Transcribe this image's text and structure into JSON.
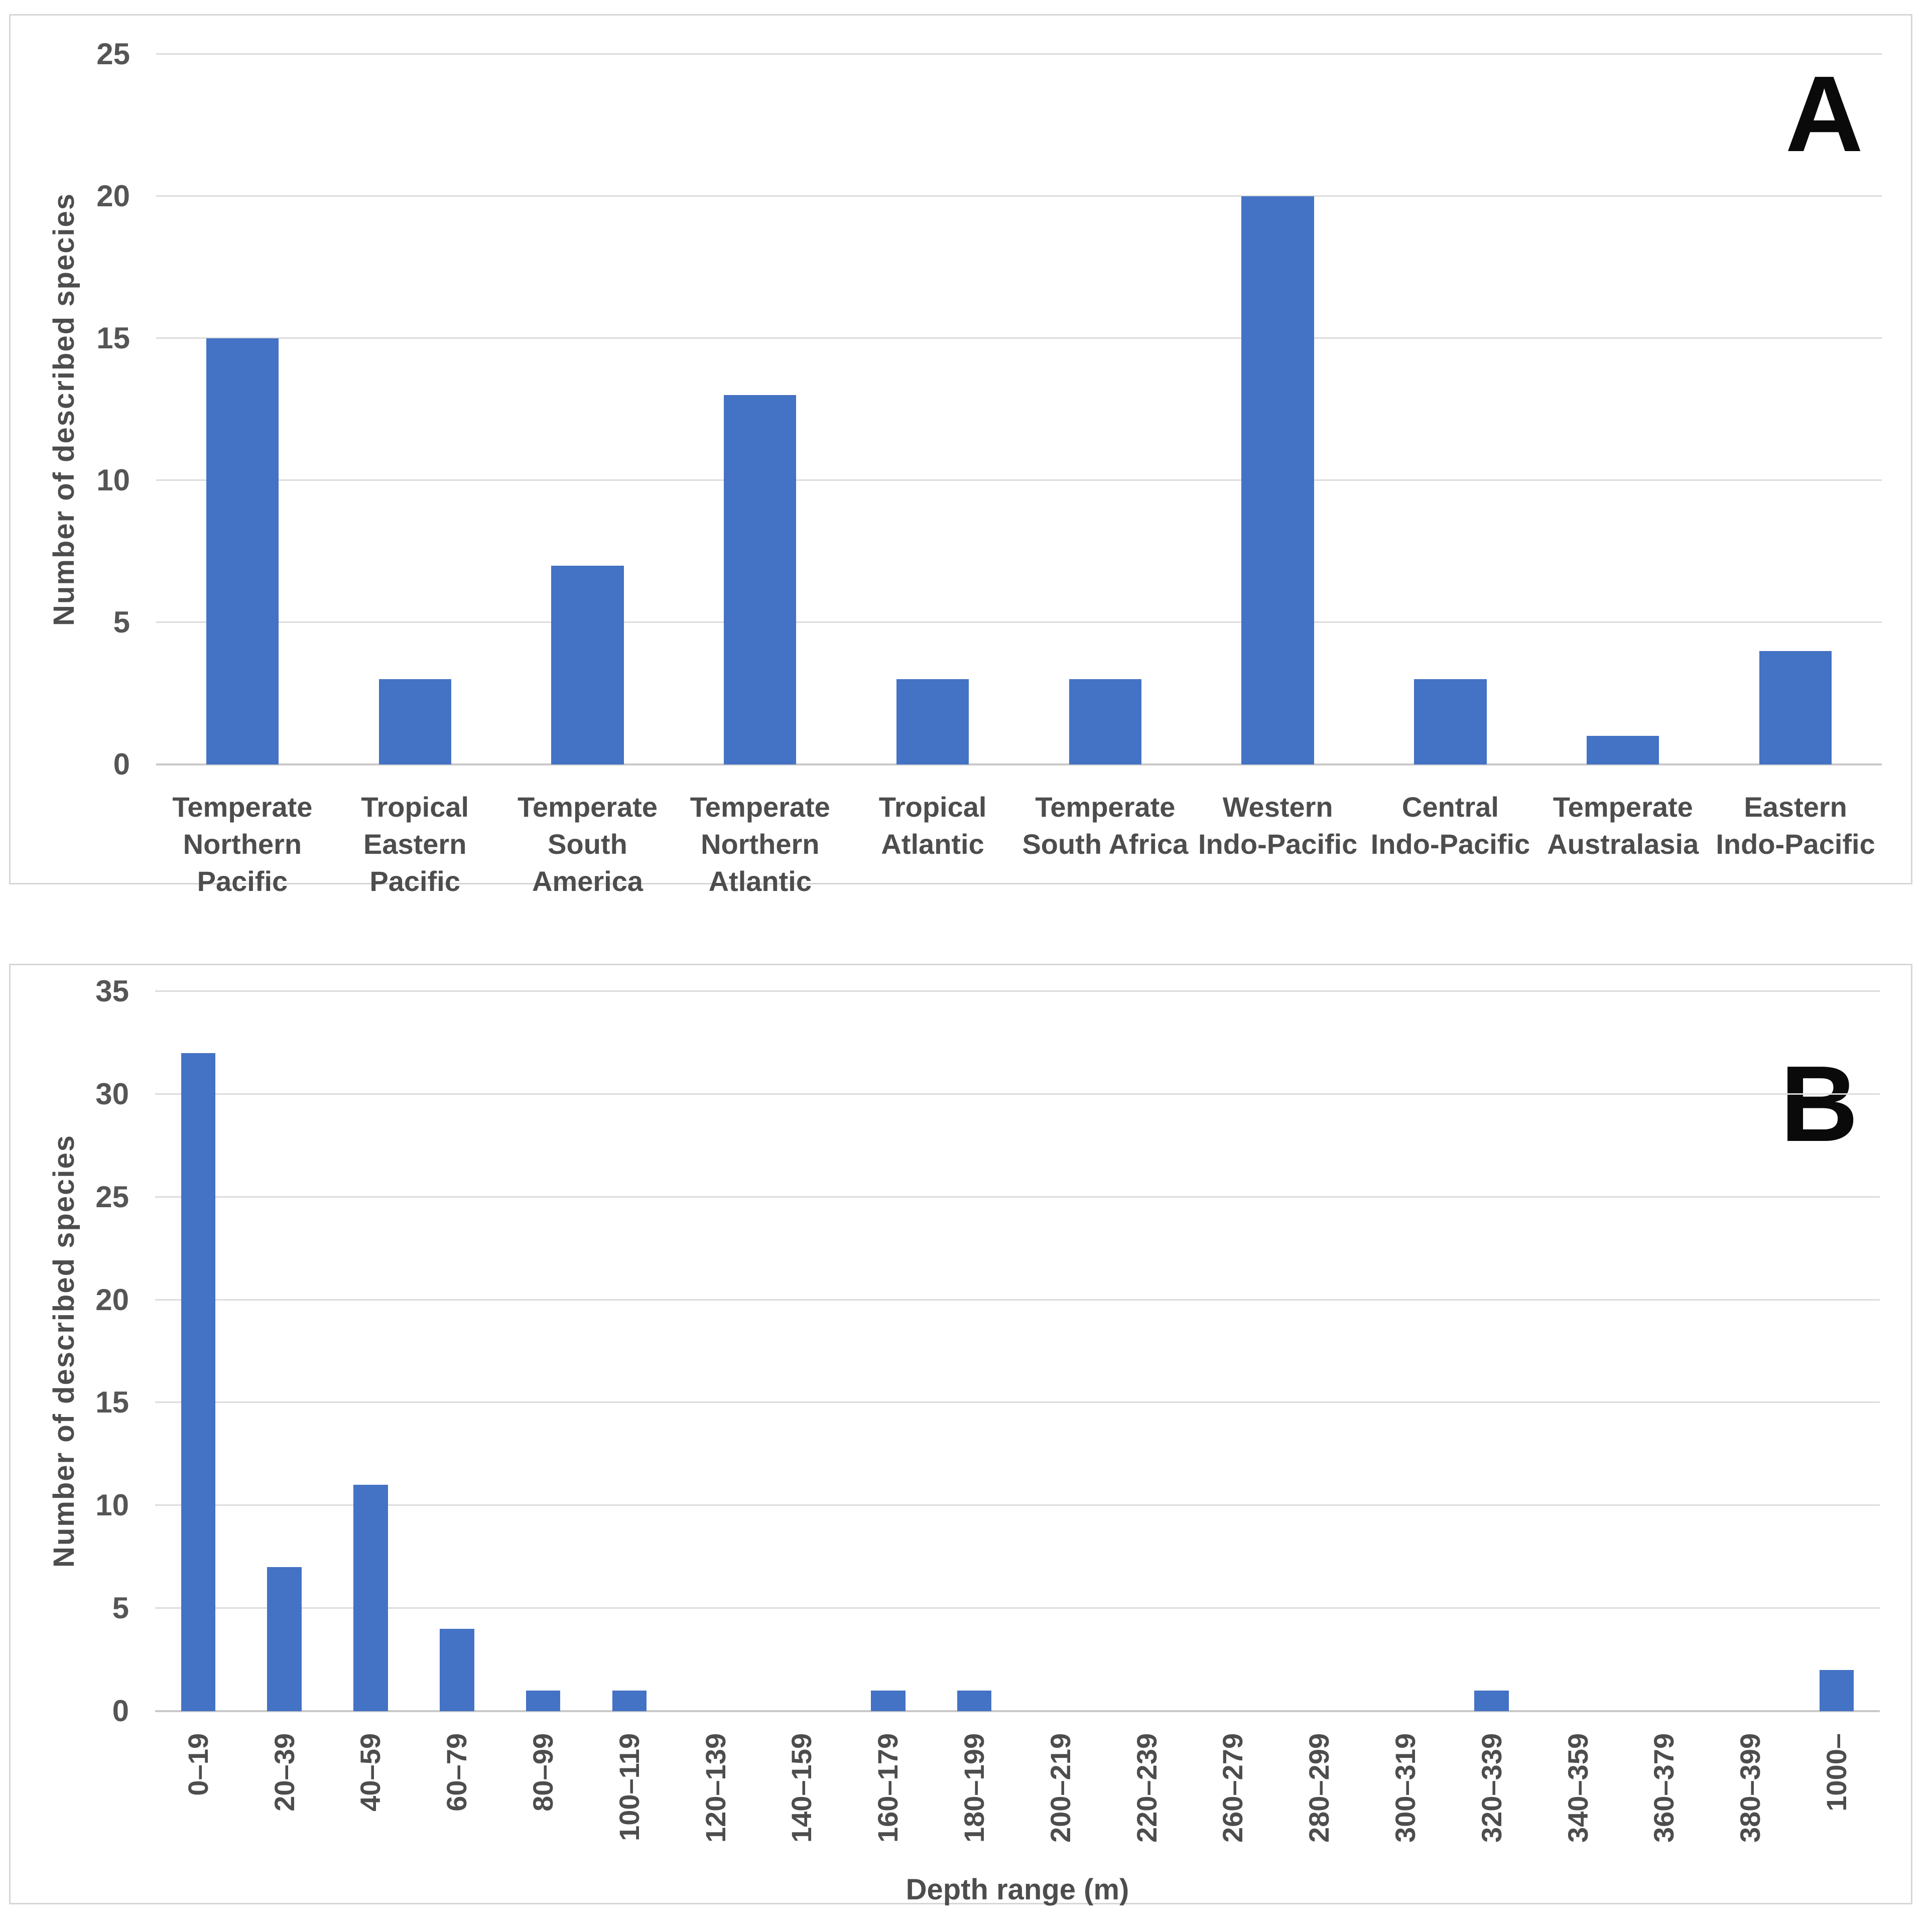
{
  "colors": {
    "bar": "#4472c4",
    "gridline": "#dcdcdc",
    "axis_line": "#c9c9c9",
    "panel_border": "#d6d6d6",
    "text": "#4d4d4d",
    "panel_letter": "#0a0a0a"
  },
  "chart_data": [
    {
      "type": "bar",
      "panel": "A",
      "categories": [
        [
          "Temperate",
          "Northern",
          "Pacific"
        ],
        [
          "Tropical",
          "Eastern",
          "Pacific"
        ],
        [
          "Temperate",
          "South",
          "America"
        ],
        [
          "Temperate",
          "Northern",
          "Atlantic"
        ],
        [
          "Tropical",
          "Atlantic"
        ],
        [
          "Temperate",
          "South Africa"
        ],
        [
          "Western",
          "Indo-Pacific"
        ],
        [
          "Central",
          "Indo-Pacific"
        ],
        [
          "Temperate",
          "Australasia"
        ],
        [
          "Eastern",
          "Indo-Pacific"
        ]
      ],
      "values": [
        15,
        3,
        7,
        13,
        3,
        3,
        20,
        3,
        1,
        4
      ],
      "xlabel": "",
      "ylabel": "Number of described species",
      "ylim": [
        0,
        25
      ],
      "ytick_step": 5,
      "yticks": [
        0,
        5,
        10,
        15,
        20,
        25
      ],
      "grid": true,
      "legend": false,
      "bar_color": "#4472c4"
    },
    {
      "type": "bar",
      "panel": "B",
      "categories": [
        "0–19",
        "20–39",
        "40–59",
        "60–79",
        "80–99",
        "100–119",
        "120–139",
        "140–159",
        "160–179",
        "180–199",
        "200–219",
        "220–239",
        "260–279",
        "280–299",
        "300–319",
        "320–339",
        "340–359",
        "360–379",
        "380–399",
        "1000–"
      ],
      "values": [
        32,
        7,
        11,
        4,
        1,
        1,
        0,
        0,
        1,
        1,
        0,
        0,
        0,
        0,
        0,
        1,
        0,
        0,
        0,
        2
      ],
      "xlabel": "Depth range (m)",
      "ylabel": "Number of described species",
      "ylim": [
        0,
        35
      ],
      "ytick_step": 5,
      "yticks": [
        0,
        5,
        10,
        15,
        20,
        25,
        30,
        35
      ],
      "grid": true,
      "legend": false,
      "xtick_rotation": 90,
      "bar_color": "#4472c4"
    }
  ]
}
